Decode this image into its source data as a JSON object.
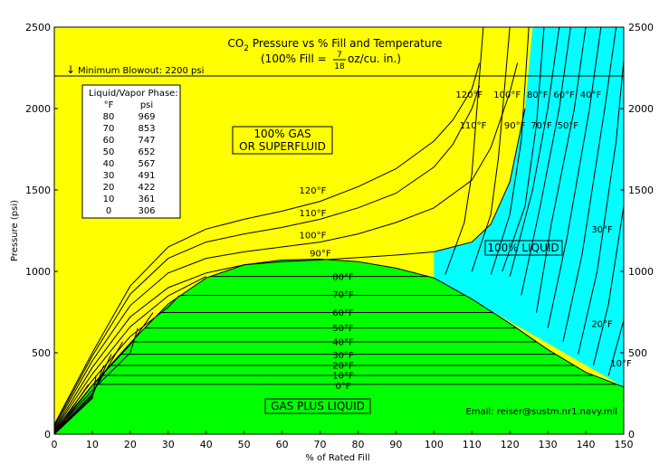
{
  "chart_data": {
    "type": "line",
    "title_main": "CO",
    "title_sub": "2",
    "title_rest": " Pressure vs % Fill and Temperature",
    "subtitle_pre": "(100% Fill = ",
    "subtitle_num": "7",
    "subtitle_den": "18",
    "subtitle_post": " oz/cu. in.)",
    "xlabel": "% of Rated Fill",
    "ylabel": "Pressure (psi)",
    "xlim": [
      0,
      150
    ],
    "ylim": [
      0,
      2500
    ],
    "x_ticks": [
      0,
      10,
      20,
      30,
      40,
      50,
      60,
      70,
      80,
      90,
      100,
      110,
      120,
      130,
      140,
      150
    ],
    "y_ticks": [
      0,
      500,
      1000,
      1500,
      2000,
      2500
    ],
    "grid": false,
    "reference_line": {
      "label": "Minimum Blowout: 2200 psi",
      "y": 2200
    },
    "table": {
      "title": "Liquid/Vapor Phase:",
      "headers": [
        "°F",
        "psi"
      ],
      "rows": [
        [
          "80",
          "969"
        ],
        [
          "70",
          "853"
        ],
        [
          "60",
          "747"
        ],
        [
          "50",
          "652"
        ],
        [
          "40",
          "567"
        ],
        [
          "30",
          "491"
        ],
        [
          "20",
          "422"
        ],
        [
          "10",
          "361"
        ],
        [
          "0",
          "306"
        ]
      ]
    },
    "regions": {
      "gas": "100% GAS\nOR SUPERFLUID",
      "liquid": "100% LIQUID",
      "mixed": "GAS PLUS LIQUID"
    },
    "email": "Email: reiser@sustm.nr1.navy.mil",
    "colors": {
      "gas": "#ffff00",
      "liquid": "#00ffff",
      "mixed": "#00ff00",
      "line": "#000000"
    },
    "saturation_dome": {
      "x": [
        0,
        10,
        20,
        30,
        40,
        50,
        60,
        70,
        80,
        90,
        100,
        110,
        120,
        130,
        140,
        150
      ],
      "y": [
        0,
        300,
        560,
        800,
        960,
        1040,
        1070,
        1075,
        1060,
        1020,
        960,
        830,
        680,
        520,
        380,
        290
      ]
    },
    "series": [
      {
        "name": "120°F",
        "label_pos": "mid",
        "x": [
          0,
          10,
          20,
          30,
          40,
          50,
          60,
          70,
          80,
          90,
          100,
          105,
          110,
          112
        ],
        "y": [
          60,
          500,
          910,
          1150,
          1260,
          1320,
          1370,
          1430,
          1520,
          1630,
          1800,
          1930,
          2120,
          2280
        ]
      },
      {
        "name": "110°F",
        "label_pos": "mid",
        "x": [
          0,
          10,
          20,
          30,
          40,
          50,
          60,
          70,
          80,
          90,
          100,
          105,
          110,
          112
        ],
        "y": [
          50,
          480,
          860,
          1080,
          1180,
          1230,
          1270,
          1320,
          1390,
          1480,
          1640,
          1780,
          2000,
          2140
        ]
      },
      {
        "name": "100°F",
        "label_pos": "mid",
        "x": [
          0,
          10,
          20,
          30,
          40,
          50,
          60,
          70,
          80,
          90,
          100,
          110,
          115,
          120,
          122
        ],
        "y": [
          40,
          450,
          790,
          990,
          1080,
          1120,
          1150,
          1180,
          1230,
          1300,
          1390,
          1560,
          1760,
          2100,
          2280
        ]
      },
      {
        "name": "90°F",
        "label_pos": "mid",
        "x": [
          0,
          10,
          20,
          30,
          40,
          50,
          60,
          70,
          80,
          90,
          100,
          110,
          115,
          120,
          124
        ],
        "y": [
          30,
          410,
          720,
          900,
          990,
          1040,
          1060,
          1070,
          1085,
          1100,
          1120,
          1180,
          1290,
          1550,
          2000
        ]
      },
      {
        "name": "80°F",
        "label_pos": "mid",
        "x": [
          0,
          10,
          20,
          30,
          40
        ],
        "y": [
          25,
          370,
          660,
          850,
          969
        ]
      },
      {
        "name": "70°F",
        "label_pos": "mid",
        "x": [
          0,
          10,
          20,
          30,
          33
        ],
        "y": [
          20,
          330,
          600,
          780,
          853
        ]
      },
      {
        "name": "60°F",
        "label_pos": "mid",
        "x": [
          0,
          10,
          20,
          26
        ],
        "y": [
          15,
          300,
          550,
          747
        ]
      },
      {
        "name": "50°F",
        "label_pos": "mid",
        "x": [
          0,
          10,
          20,
          22
        ],
        "y": [
          10,
          270,
          500,
          652
        ]
      },
      {
        "name": "40°F",
        "label_pos": "mid",
        "x": [
          0,
          10,
          18
        ],
        "y": [
          5,
          250,
          567
        ]
      },
      {
        "name": "30°F",
        "label_pos": "mid",
        "x": [
          0,
          10,
          15
        ],
        "y": [
          0,
          240,
          491
        ]
      },
      {
        "name": "20°F",
        "label_pos": "mid",
        "x": [
          0,
          10,
          13
        ],
        "y": [
          0,
          230,
          422
        ]
      },
      {
        "name": "10°F",
        "label_pos": "mid",
        "x": [
          0,
          10,
          11
        ],
        "y": [
          0,
          220,
          361
        ]
      },
      {
        "name": "0°F",
        "label_pos": "mid",
        "x": [
          0,
          9
        ],
        "y": [
          0,
          306
        ]
      }
    ],
    "liquid_lines": [
      {
        "name": "120°F",
        "x": [
          103,
          108,
          110,
          113
        ],
        "y": [
          980,
          1300,
          1600,
          2500
        ]
      },
      {
        "name": "110°F",
        "x": [
          110,
          115,
          117,
          120
        ],
        "y": [
          1000,
          1350,
          1700,
          2500
        ]
      },
      {
        "name": "100°F",
        "x": [
          115,
          120,
          123,
          125
        ],
        "y": [
          980,
          1350,
          1800,
          2500
        ]
      },
      {
        "name": "90°F",
        "x": [
          118,
          124,
          127,
          129
        ],
        "y": [
          1000,
          1400,
          1900,
          2500
        ]
      },
      {
        "name": "80°F",
        "x": [
          120,
          126,
          130,
          133
        ],
        "y": [
          969,
          1500,
          2000,
          2500
        ]
      },
      {
        "name": "70°F",
        "x": [
          123,
          128,
          133,
          136
        ],
        "y": [
          853,
          1400,
          2000,
          2500
        ]
      },
      {
        "name": "60°F",
        "x": [
          127,
          131,
          137,
          140
        ],
        "y": [
          747,
          1300,
          2000,
          2500
        ]
      },
      {
        "name": "50°F",
        "x": [
          130,
          135,
          141,
          144
        ],
        "y": [
          652,
          1200,
          2000,
          2500
        ]
      },
      {
        "name": "40°F",
        "x": [
          134,
          139,
          145,
          148
        ],
        "y": [
          567,
          1100,
          2000,
          2500
        ]
      },
      {
        "name": "30°F",
        "x": [
          138,
          143,
          148,
          150
        ],
        "y": [
          491,
          1000,
          1800,
          2300
        ]
      },
      {
        "name": "20°F",
        "x": [
          142,
          146,
          150
        ],
        "y": [
          422,
          800,
          1400
        ]
      },
      {
        "name": "10°F",
        "x": [
          146,
          150
        ],
        "y": [
          361,
          700
        ]
      }
    ],
    "upper_labels": [
      "120°F",
      "100°F",
      "80°F",
      "60°F",
      "40°F"
    ],
    "mid_labels": [
      "110°F",
      "90°F",
      "70°F",
      "50°F"
    ],
    "right_labels": [
      "30°F",
      "20°F",
      "10°F"
    ]
  }
}
